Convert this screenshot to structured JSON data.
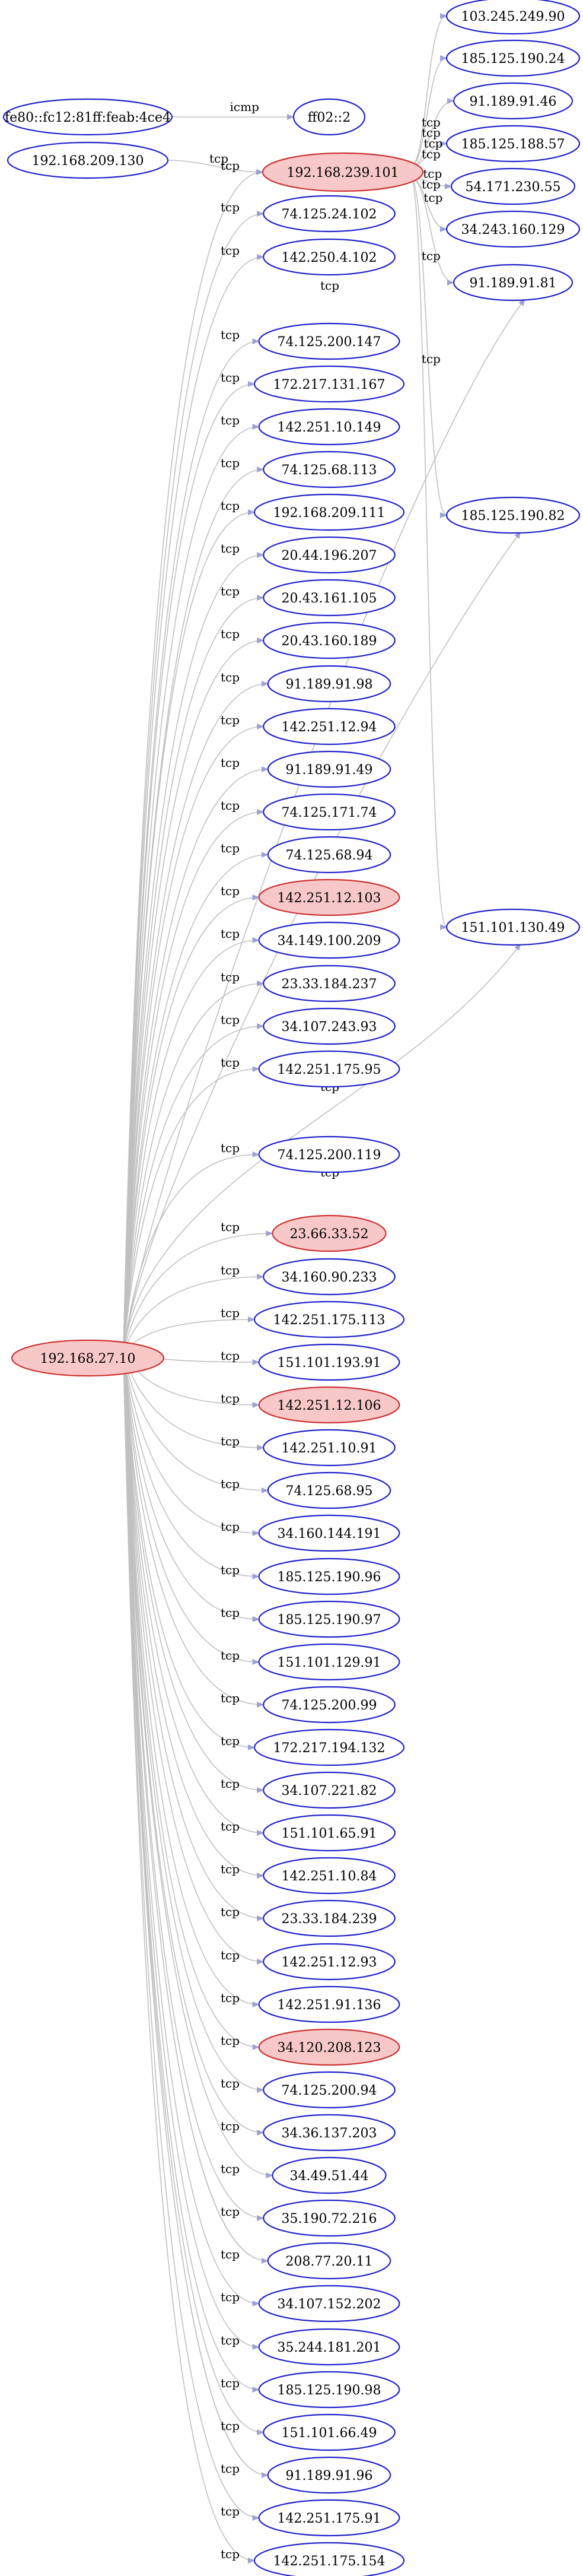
{
  "colors": {
    "normal_stroke": "#2222cc",
    "normal_fill": "#ffffff",
    "highlight_stroke": "#cc3333",
    "highlight_fill": "#f8c8c8",
    "edge": "#c0c0c0",
    "arrow": "#9aa0d8"
  },
  "nodes": [
    {
      "id": "n_fe80",
      "label": "fe80::fc12:81ff:feab:4ce4",
      "highlight": false
    },
    {
      "id": "n_ff02",
      "label": "ff02::2",
      "highlight": false
    },
    {
      "id": "n_192_168_209_130",
      "label": "192.168.209.130",
      "highlight": false
    },
    {
      "id": "n_192_168_239_101",
      "label": "192.168.239.101",
      "highlight": true
    },
    {
      "id": "n_192_168_27_10",
      "label": "192.168.27.10",
      "highlight": true
    },
    {
      "id": "n_103_245_249_90",
      "label": "103.245.249.90",
      "highlight": false
    },
    {
      "id": "n_185_125_190_24",
      "label": "185.125.190.24",
      "highlight": false
    },
    {
      "id": "n_91_189_91_46",
      "label": "91.189.91.46",
      "highlight": false
    },
    {
      "id": "n_185_125_188_57",
      "label": "185.125.188.57",
      "highlight": false
    },
    {
      "id": "n_54_171_230_55",
      "label": "54.171.230.55",
      "highlight": false
    },
    {
      "id": "n_34_243_160_129",
      "label": "34.243.160.129",
      "highlight": false
    },
    {
      "id": "n_91_189_91_81",
      "label": "91.189.91.81",
      "highlight": false
    },
    {
      "id": "n_185_125_190_82",
      "label": "185.125.190.82",
      "highlight": false
    },
    {
      "id": "n_151_101_130_49",
      "label": "151.101.130.49",
      "highlight": false
    },
    {
      "id": "n_74_125_24_102",
      "label": "74.125.24.102",
      "highlight": false
    },
    {
      "id": "n_142_250_4_102",
      "label": "142.250.4.102",
      "highlight": false
    },
    {
      "id": "n_74_125_200_147",
      "label": "74.125.200.147",
      "highlight": false
    },
    {
      "id": "n_172_217_131_167",
      "label": "172.217.131.167",
      "highlight": false
    },
    {
      "id": "n_142_251_10_149",
      "label": "142.251.10.149",
      "highlight": false
    },
    {
      "id": "n_74_125_68_113",
      "label": "74.125.68.113",
      "highlight": false
    },
    {
      "id": "n_192_168_209_111",
      "label": "192.168.209.111",
      "highlight": false
    },
    {
      "id": "n_20_44_196_207",
      "label": "20.44.196.207",
      "highlight": false
    },
    {
      "id": "n_20_43_161_105",
      "label": "20.43.161.105",
      "highlight": false
    },
    {
      "id": "n_20_43_160_189",
      "label": "20.43.160.189",
      "highlight": false
    },
    {
      "id": "n_91_189_91_98",
      "label": "91.189.91.98",
      "highlight": false
    },
    {
      "id": "n_142_251_12_94",
      "label": "142.251.12.94",
      "highlight": false
    },
    {
      "id": "n_91_189_91_49",
      "label": "91.189.91.49",
      "highlight": false
    },
    {
      "id": "n_74_125_171_74",
      "label": "74.125.171.74",
      "highlight": false
    },
    {
      "id": "n_74_125_68_94",
      "label": "74.125.68.94",
      "highlight": false
    },
    {
      "id": "n_142_251_12_103",
      "label": "142.251.12.103",
      "highlight": true
    },
    {
      "id": "n_34_149_100_209",
      "label": "34.149.100.209",
      "highlight": false
    },
    {
      "id": "n_23_33_184_237",
      "label": "23.33.184.237",
      "highlight": false
    },
    {
      "id": "n_34_107_243_93",
      "label": "34.107.243.93",
      "highlight": false
    },
    {
      "id": "n_142_251_175_95",
      "label": "142.251.175.95",
      "highlight": false
    },
    {
      "id": "n_74_125_200_119",
      "label": "74.125.200.119",
      "highlight": false
    },
    {
      "id": "n_23_66_33_52",
      "label": "23.66.33.52",
      "highlight": true
    },
    {
      "id": "n_34_160_90_233",
      "label": "34.160.90.233",
      "highlight": false
    },
    {
      "id": "n_142_251_175_113",
      "label": "142.251.175.113",
      "highlight": false
    },
    {
      "id": "n_151_101_193_91",
      "label": "151.101.193.91",
      "highlight": false
    },
    {
      "id": "n_142_251_12_106",
      "label": "142.251.12.106",
      "highlight": true
    },
    {
      "id": "n_142_251_10_91",
      "label": "142.251.10.91",
      "highlight": false
    },
    {
      "id": "n_74_125_68_95",
      "label": "74.125.68.95",
      "highlight": false
    },
    {
      "id": "n_34_160_144_191",
      "label": "34.160.144.191",
      "highlight": false
    },
    {
      "id": "n_185_125_190_96",
      "label": "185.125.190.96",
      "highlight": false
    },
    {
      "id": "n_185_125_190_97",
      "label": "185.125.190.97",
      "highlight": false
    },
    {
      "id": "n_151_101_129_91",
      "label": "151.101.129.91",
      "highlight": false
    },
    {
      "id": "n_74_125_200_99",
      "label": "74.125.200.99",
      "highlight": false
    },
    {
      "id": "n_172_217_194_132",
      "label": "172.217.194.132",
      "highlight": false
    },
    {
      "id": "n_34_107_221_82",
      "label": "34.107.221.82",
      "highlight": false
    },
    {
      "id": "n_151_101_65_91",
      "label": "151.101.65.91",
      "highlight": false
    },
    {
      "id": "n_142_251_10_84",
      "label": "142.251.10.84",
      "highlight": false
    },
    {
      "id": "n_23_33_184_239",
      "label": "23.33.184.239",
      "highlight": false
    },
    {
      "id": "n_142_251_12_93",
      "label": "142.251.12.93",
      "highlight": false
    },
    {
      "id": "n_142_251_91_136",
      "label": "142.251.91.136",
      "highlight": false
    },
    {
      "id": "n_34_120_208_123",
      "label": "34.120.208.123",
      "highlight": true
    },
    {
      "id": "n_74_125_200_94",
      "label": "74.125.200.94",
      "highlight": false
    },
    {
      "id": "n_34_36_137_203",
      "label": "34.36.137.203",
      "highlight": false
    },
    {
      "id": "n_34_49_51_44",
      "label": "34.49.51.44",
      "highlight": false
    },
    {
      "id": "n_35_190_72_216",
      "label": "35.190.72.216",
      "highlight": false
    },
    {
      "id": "n_208_77_20_11",
      "label": "208.77.20.11",
      "highlight": false
    },
    {
      "id": "n_34_107_152_202",
      "label": "34.107.152.202",
      "highlight": false
    },
    {
      "id": "n_35_244_181_201",
      "label": "35.244.181.201",
      "highlight": false
    },
    {
      "id": "n_185_125_190_98",
      "label": "185.125.190.98",
      "highlight": false
    },
    {
      "id": "n_151_101_66_49",
      "label": "151.101.66.49",
      "highlight": false
    },
    {
      "id": "n_91_189_91_96",
      "label": "91.189.91.96",
      "highlight": false
    },
    {
      "id": "n_142_251_175_91",
      "label": "142.251.175.91",
      "highlight": false
    },
    {
      "id": "n_142_251_175_154",
      "label": "142.251.175.154",
      "highlight": false
    }
  ],
  "edges": [
    {
      "from": "n_fe80",
      "to": "n_ff02",
      "label": "icmp"
    },
    {
      "from": "n_192_168_209_130",
      "to": "n_192_168_239_101",
      "label": "tcp"
    },
    {
      "from": "n_192_168_239_101",
      "to": "n_103_245_249_90",
      "label": "tcp"
    },
    {
      "from": "n_192_168_239_101",
      "to": "n_185_125_190_24",
      "label": "tcp"
    },
    {
      "from": "n_192_168_239_101",
      "to": "n_91_189_91_46",
      "label": "tcp"
    },
    {
      "from": "n_192_168_239_101",
      "to": "n_185_125_188_57",
      "label": "tcp"
    },
    {
      "from": "n_192_168_239_101",
      "to": "n_54_171_230_55",
      "label": "tcp"
    },
    {
      "from": "n_192_168_239_101",
      "to": "n_34_243_160_129",
      "label": "tcp"
    },
    {
      "from": "n_192_168_239_101",
      "to": "n_91_189_91_81",
      "label": "tcp"
    },
    {
      "from": "n_192_168_239_101",
      "to": "n_185_125_190_82",
      "label": "tcp"
    },
    {
      "from": "n_192_168_239_101",
      "to": "n_151_101_130_49",
      "label": "tcp"
    },
    {
      "from": "n_192_168_27_10",
      "to": "n_192_168_239_101",
      "label": "tcp"
    },
    {
      "from": "n_192_168_27_10",
      "to": "n_74_125_24_102",
      "label": "tcp"
    },
    {
      "from": "n_192_168_27_10",
      "to": "n_142_250_4_102",
      "label": "tcp"
    },
    {
      "from": "n_192_168_27_10",
      "to": "n_91_189_91_81",
      "label": "tcp"
    },
    {
      "from": "n_192_168_27_10",
      "to": "n_74_125_200_147",
      "label": "tcp"
    },
    {
      "from": "n_192_168_27_10",
      "to": "n_172_217_131_167",
      "label": "tcp"
    },
    {
      "from": "n_192_168_27_10",
      "to": "n_142_251_10_149",
      "label": "tcp"
    },
    {
      "from": "n_192_168_27_10",
      "to": "n_74_125_68_113",
      "label": "tcp"
    },
    {
      "from": "n_192_168_27_10",
      "to": "n_192_168_209_111",
      "label": "tcp"
    },
    {
      "from": "n_192_168_27_10",
      "to": "n_20_44_196_207",
      "label": "tcp"
    },
    {
      "from": "n_192_168_27_10",
      "to": "n_20_43_161_105",
      "label": "tcp"
    },
    {
      "from": "n_192_168_27_10",
      "to": "n_20_43_160_189",
      "label": "tcp"
    },
    {
      "from": "n_192_168_27_10",
      "to": "n_91_189_91_98",
      "label": "tcp"
    },
    {
      "from": "n_192_168_27_10",
      "to": "n_142_251_12_94",
      "label": "tcp"
    },
    {
      "from": "n_192_168_27_10",
      "to": "n_91_189_91_49",
      "label": "tcp"
    },
    {
      "from": "n_192_168_27_10",
      "to": "n_74_125_171_74",
      "label": "tcp"
    },
    {
      "from": "n_192_168_27_10",
      "to": "n_74_125_68_94",
      "label": "tcp"
    },
    {
      "from": "n_192_168_27_10",
      "to": "n_142_251_12_103",
      "label": "tcp"
    },
    {
      "from": "n_192_168_27_10",
      "to": "n_34_149_100_209",
      "label": "tcp"
    },
    {
      "from": "n_192_168_27_10",
      "to": "n_23_33_184_237",
      "label": "tcp"
    },
    {
      "from": "n_192_168_27_10",
      "to": "n_34_107_243_93",
      "label": "tcp"
    },
    {
      "from": "n_192_168_27_10",
      "to": "n_142_251_175_95",
      "label": "tcp"
    },
    {
      "from": "n_192_168_27_10",
      "to": "n_185_125_190_82",
      "label": "tcp"
    },
    {
      "from": "n_192_168_27_10",
      "to": "n_74_125_200_119",
      "label": "tcp"
    },
    {
      "from": "n_192_168_27_10",
      "to": "n_151_101_130_49",
      "label": "tcp"
    },
    {
      "from": "n_192_168_27_10",
      "to": "n_23_66_33_52",
      "label": "tcp"
    },
    {
      "from": "n_192_168_27_10",
      "to": "n_34_160_90_233",
      "label": "tcp"
    },
    {
      "from": "n_192_168_27_10",
      "to": "n_142_251_175_113",
      "label": "tcp"
    },
    {
      "from": "n_192_168_27_10",
      "to": "n_151_101_193_91",
      "label": "tcp"
    },
    {
      "from": "n_192_168_27_10",
      "to": "n_142_251_12_106",
      "label": "tcp"
    },
    {
      "from": "n_192_168_27_10",
      "to": "n_142_251_10_91",
      "label": "tcp"
    },
    {
      "from": "n_192_168_27_10",
      "to": "n_74_125_68_95",
      "label": "tcp"
    },
    {
      "from": "n_192_168_27_10",
      "to": "n_34_160_144_191",
      "label": "tcp"
    },
    {
      "from": "n_192_168_27_10",
      "to": "n_185_125_190_96",
      "label": "tcp"
    },
    {
      "from": "n_192_168_27_10",
      "to": "n_185_125_190_97",
      "label": "tcp"
    },
    {
      "from": "n_192_168_27_10",
      "to": "n_151_101_129_91",
      "label": "tcp"
    },
    {
      "from": "n_192_168_27_10",
      "to": "n_74_125_200_99",
      "label": "tcp"
    },
    {
      "from": "n_192_168_27_10",
      "to": "n_172_217_194_132",
      "label": "tcp"
    },
    {
      "from": "n_192_168_27_10",
      "to": "n_34_107_221_82",
      "label": "tcp"
    },
    {
      "from": "n_192_168_27_10",
      "to": "n_151_101_65_91",
      "label": "tcp"
    },
    {
      "from": "n_192_168_27_10",
      "to": "n_142_251_10_84",
      "label": "tcp"
    },
    {
      "from": "n_192_168_27_10",
      "to": "n_23_33_184_239",
      "label": "tcp"
    },
    {
      "from": "n_192_168_27_10",
      "to": "n_142_251_12_93",
      "label": "tcp"
    },
    {
      "from": "n_192_168_27_10",
      "to": "n_142_251_91_136",
      "label": "tcp"
    },
    {
      "from": "n_192_168_27_10",
      "to": "n_34_120_208_123",
      "label": "tcp"
    },
    {
      "from": "n_192_168_27_10",
      "to": "n_74_125_200_94",
      "label": "tcp"
    },
    {
      "from": "n_192_168_27_10",
      "to": "n_34_36_137_203",
      "label": "tcp"
    },
    {
      "from": "n_192_168_27_10",
      "to": "n_34_49_51_44",
      "label": "tcp"
    },
    {
      "from": "n_192_168_27_10",
      "to": "n_35_190_72_216",
      "label": "tcp"
    },
    {
      "from": "n_192_168_27_10",
      "to": "n_208_77_20_11",
      "label": "tcp"
    },
    {
      "from": "n_192_168_27_10",
      "to": "n_34_107_152_202",
      "label": "tcp"
    },
    {
      "from": "n_192_168_27_10",
      "to": "n_35_244_181_201",
      "label": "tcp"
    },
    {
      "from": "n_192_168_27_10",
      "to": "n_185_125_190_98",
      "label": "tcp"
    },
    {
      "from": "n_192_168_27_10",
      "to": "n_151_101_66_49",
      "label": "tcp"
    },
    {
      "from": "n_192_168_27_10",
      "to": "n_91_189_91_96",
      "label": "tcp"
    },
    {
      "from": "n_192_168_27_10",
      "to": "n_142_251_175_91",
      "label": "tcp"
    },
    {
      "from": "n_192_168_27_10",
      "to": "n_142_251_175_154",
      "label": "tcp"
    }
  ]
}
